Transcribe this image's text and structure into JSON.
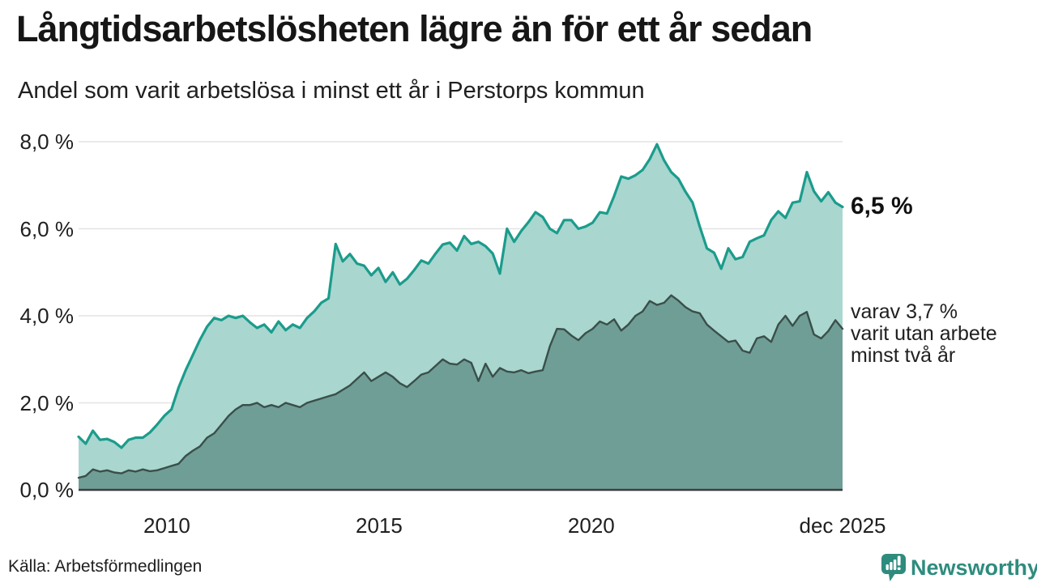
{
  "header": {
    "title": "Långtidsarbetslösheten lägre än för ett år sedan",
    "subtitle": "Andel som varit arbetslösa i minst ett år i Perstorps kommun"
  },
  "annotations": {
    "latest_total": "6,5 %",
    "latest_two_year_lines": [
      "varav 3,7 %",
      "varit utan arbete",
      "minst två år"
    ]
  },
  "footer": {
    "source": "Källa: Arbetsförmedlingen",
    "brand_name": "Newsworthy"
  },
  "colors": {
    "total_line": "#1b9c8c",
    "total_fill": "#a9d6cf",
    "two_year_line": "#3a4f4a",
    "two_year_fill": "#6f9e97",
    "gridline": "#e3e3e3",
    "axis_line": "#3d3d3d",
    "text": "#202020",
    "title_text": "#161616",
    "brand": "#2e8c7e"
  },
  "chart_data": {
    "type": "area",
    "title": "Långtidsarbetslösheten lägre än för ett år sedan",
    "subtitle": "Andel som varit arbetslösa i minst ett år i Perstorps kommun",
    "source": "Källa: Arbetsförmedlingen",
    "grid": "horizontal",
    "legend_position": "none",
    "x_start": 2007.92,
    "x_end": 2025.92,
    "ylim": [
      0,
      8
    ],
    "y_ticks": [
      {
        "value": 0,
        "label": "0,0 %"
      },
      {
        "value": 2,
        "label": "2,0 %"
      },
      {
        "value": 4,
        "label": "4,0 %"
      },
      {
        "value": 6,
        "label": "6,0 %"
      },
      {
        "value": 8,
        "label": "8,0 %"
      }
    ],
    "x_ticks": [
      {
        "value": 2010,
        "label": "2010"
      },
      {
        "value": 2015,
        "label": "2015"
      },
      {
        "value": 2020,
        "label": "2020"
      },
      {
        "value": 2025.92,
        "label": "dec 2025"
      }
    ],
    "series": [
      {
        "name": "Andel arbetslösa minst ett år",
        "latest_value": 6.5,
        "latest_label": "6,5 %",
        "values": [
          1.22,
          1.06,
          1.36,
          1.15,
          1.17,
          1.1,
          0.97,
          1.15,
          1.2,
          1.2,
          1.32,
          1.5,
          1.7,
          1.85,
          2.35,
          2.75,
          3.1,
          3.45,
          3.75,
          3.95,
          3.9,
          4.0,
          3.95,
          4.0,
          3.85,
          3.72,
          3.8,
          3.62,
          3.87,
          3.67,
          3.8,
          3.72,
          3.95,
          4.1,
          4.3,
          4.4,
          5.65,
          5.25,
          5.42,
          5.2,
          5.15,
          4.93,
          5.1,
          4.78,
          5.0,
          4.72,
          4.85,
          5.05,
          5.27,
          5.2,
          5.43,
          5.64,
          5.68,
          5.5,
          5.83,
          5.65,
          5.7,
          5.6,
          5.43,
          4.97,
          6.0,
          5.7,
          5.95,
          6.15,
          6.38,
          6.27,
          6.0,
          5.9,
          6.2,
          6.2,
          6.0,
          6.05,
          6.14,
          6.38,
          6.35,
          6.75,
          7.2,
          7.15,
          7.23,
          7.35,
          7.6,
          7.94,
          7.57,
          7.3,
          7.15,
          6.85,
          6.6,
          6.05,
          5.55,
          5.45,
          5.08,
          5.55,
          5.3,
          5.35,
          5.7,
          5.78,
          5.85,
          6.2,
          6.4,
          6.25,
          6.6,
          6.63,
          7.3,
          6.86,
          6.63,
          6.84,
          6.6,
          6.5
        ]
      },
      {
        "name": "Andel arbetslösa minst två år",
        "latest_value": 3.7,
        "latest_label": "3,7 %",
        "values": [
          0.28,
          0.32,
          0.47,
          0.42,
          0.45,
          0.4,
          0.38,
          0.45,
          0.42,
          0.47,
          0.43,
          0.45,
          0.5,
          0.55,
          0.6,
          0.78,
          0.9,
          1.0,
          1.2,
          1.3,
          1.5,
          1.7,
          1.85,
          1.95,
          1.95,
          2.0,
          1.9,
          1.95,
          1.9,
          2.0,
          1.95,
          1.9,
          2.0,
          2.05,
          2.1,
          2.15,
          2.2,
          2.3,
          2.4,
          2.55,
          2.7,
          2.5,
          2.6,
          2.7,
          2.6,
          2.45,
          2.36,
          2.5,
          2.65,
          2.7,
          2.85,
          3.0,
          2.9,
          2.88,
          3.0,
          2.92,
          2.5,
          2.9,
          2.6,
          2.8,
          2.72,
          2.7,
          2.75,
          2.68,
          2.72,
          2.75,
          3.3,
          3.7,
          3.69,
          3.55,
          3.44,
          3.6,
          3.7,
          3.87,
          3.8,
          3.92,
          3.66,
          3.8,
          4.0,
          4.1,
          4.34,
          4.25,
          4.3,
          4.47,
          4.35,
          4.2,
          4.1,
          4.06,
          3.8,
          3.66,
          3.53,
          3.4,
          3.43,
          3.2,
          3.15,
          3.48,
          3.53,
          3.4,
          3.8,
          4.0,
          3.77,
          4.0,
          4.09,
          3.57,
          3.48,
          3.65,
          3.9,
          3.7
        ]
      }
    ]
  }
}
